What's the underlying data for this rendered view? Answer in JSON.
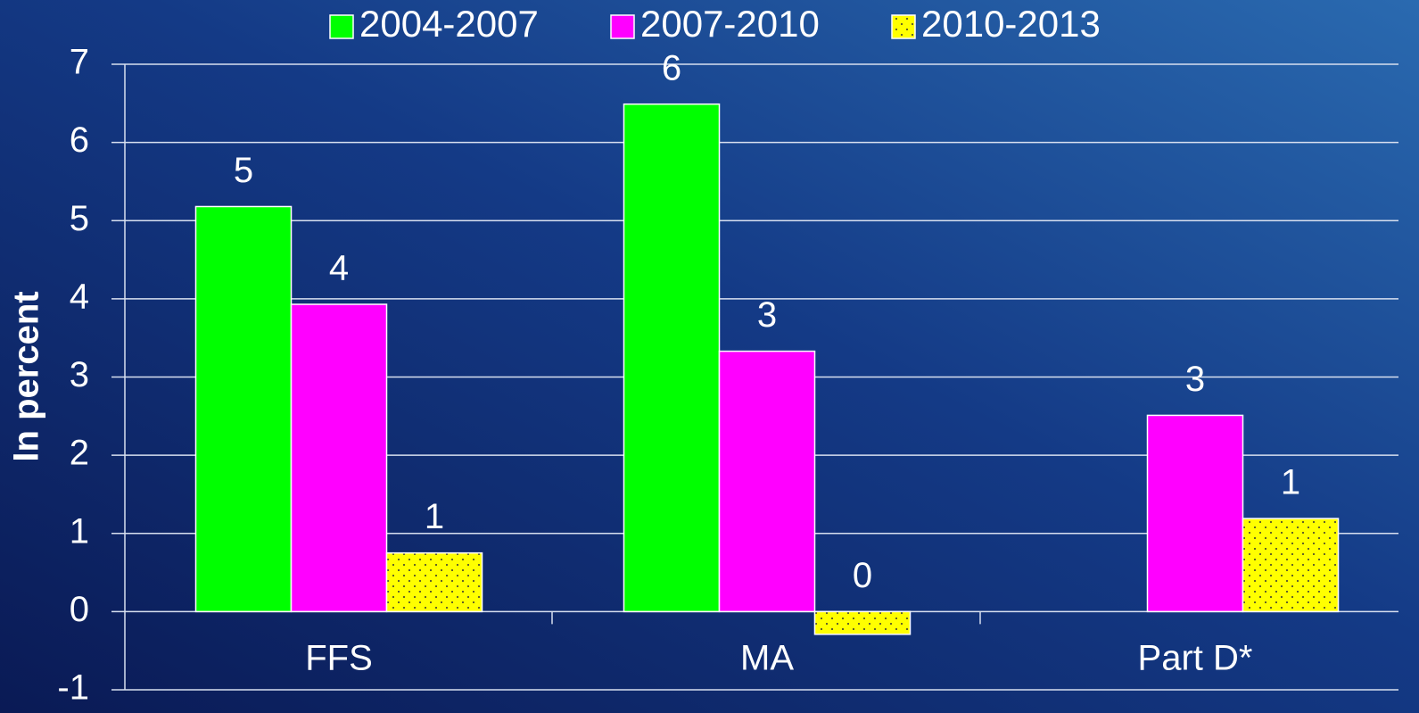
{
  "chart_data": {
    "type": "bar",
    "y_label": "In percent",
    "categories": [
      "FFS",
      "MA",
      "Part D*"
    ],
    "series": [
      {
        "name": "2004-2007",
        "color": "#00ff00",
        "values": [
          5.18,
          6.49,
          null
        ],
        "value_labels": [
          "5",
          "6",
          null
        ]
      },
      {
        "name": "2007-2010",
        "color": "#ff00ff",
        "values": [
          3.93,
          3.33,
          2.51
        ],
        "value_labels": [
          "4",
          "3",
          "3"
        ]
      },
      {
        "name": "2010-2013",
        "color": "#ffff00",
        "pattern": "dots",
        "values": [
          0.75,
          -0.29,
          1.19
        ],
        "value_labels": [
          "1",
          "0",
          "1"
        ]
      }
    ],
    "ylim": [
      -1,
      7
    ],
    "yticks": [
      -1,
      0,
      1,
      2,
      3,
      4,
      5,
      6,
      7
    ],
    "grid": true,
    "legend": "top"
  }
}
